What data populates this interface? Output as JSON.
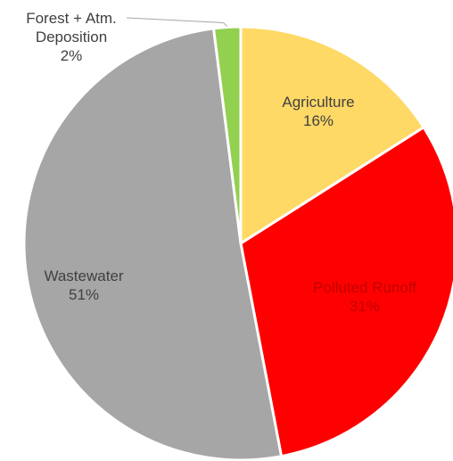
{
  "chart_data": {
    "type": "pie",
    "start_angle_deg": 0,
    "direction": "clockwise",
    "slices": [
      {
        "name": "Agriculture",
        "value": 16,
        "label": "16%",
        "color": "#FFD966",
        "label_color": "#404040"
      },
      {
        "name": "Polluted Runoff",
        "value": 31,
        "label": "31%",
        "color": "#FF0000",
        "label_color": "#C00000"
      },
      {
        "name": "Wastewater",
        "value": 51,
        "label": "51%",
        "color": "#A6A6A6",
        "label_color": "#404040"
      },
      {
        "name": "Forest + Atm. Deposition",
        "value": 2,
        "label": "2%",
        "color": "#92D050",
        "label_color": "#404040",
        "name_lines": [
          "Forest + Atm.",
          "Deposition"
        ],
        "leader_line": true
      }
    ],
    "slice_border_color": "#ffffff",
    "legend": "none"
  }
}
